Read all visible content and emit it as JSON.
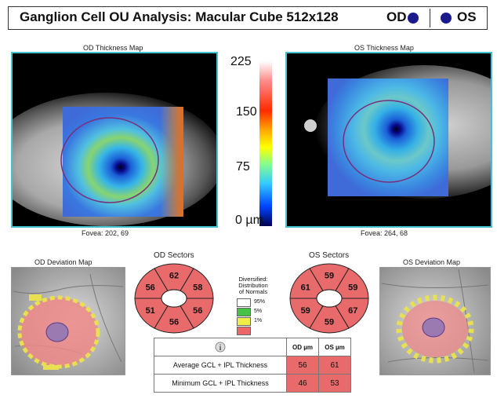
{
  "header": {
    "title": "Ganglion Cell OU Analysis: Macular Cube 512x128",
    "od_label": "OD",
    "os_label": "OS"
  },
  "colors": {
    "od_os_dot": "#1a1a8c",
    "map_border": "#45c2cf",
    "red_normal": "#e86a6a",
    "legend": [
      "#ffffff",
      "#44c444",
      "#eeee44",
      "#ee6666"
    ]
  },
  "od_map": {
    "title": "OD Thickness Map",
    "fovea": "Fovea: 202, 69"
  },
  "os_map": {
    "title": "OS Thickness Map",
    "fovea": "Fovea: 264, 68"
  },
  "colorscale": {
    "labels": [
      "225",
      "150",
      "75",
      "0 µm"
    ]
  },
  "od_deviation": {
    "title": "OD Deviation Map"
  },
  "os_deviation": {
    "title": "OS Deviation Map"
  },
  "od_sectors": {
    "title": "OD Sectors",
    "values": [
      "62",
      "58",
      "56",
      "56",
      "51",
      "56"
    ]
  },
  "os_sectors": {
    "title": "OS Sectors",
    "values": [
      "59",
      "59",
      "67",
      "59",
      "59",
      "61"
    ]
  },
  "legend": {
    "title_lines": [
      "Diversified:",
      "Distribution",
      "of Normals"
    ],
    "entries": [
      "95%",
      "5%",
      "1%"
    ]
  },
  "table": {
    "header": [
      "OD µm",
      "OS µm"
    ],
    "rows": [
      {
        "label": "Average GCL + IPL Thickness",
        "od": "56",
        "os": "61"
      },
      {
        "label": "Minimum GCL + IPL Thickness",
        "od": "46",
        "os": "53"
      }
    ]
  }
}
